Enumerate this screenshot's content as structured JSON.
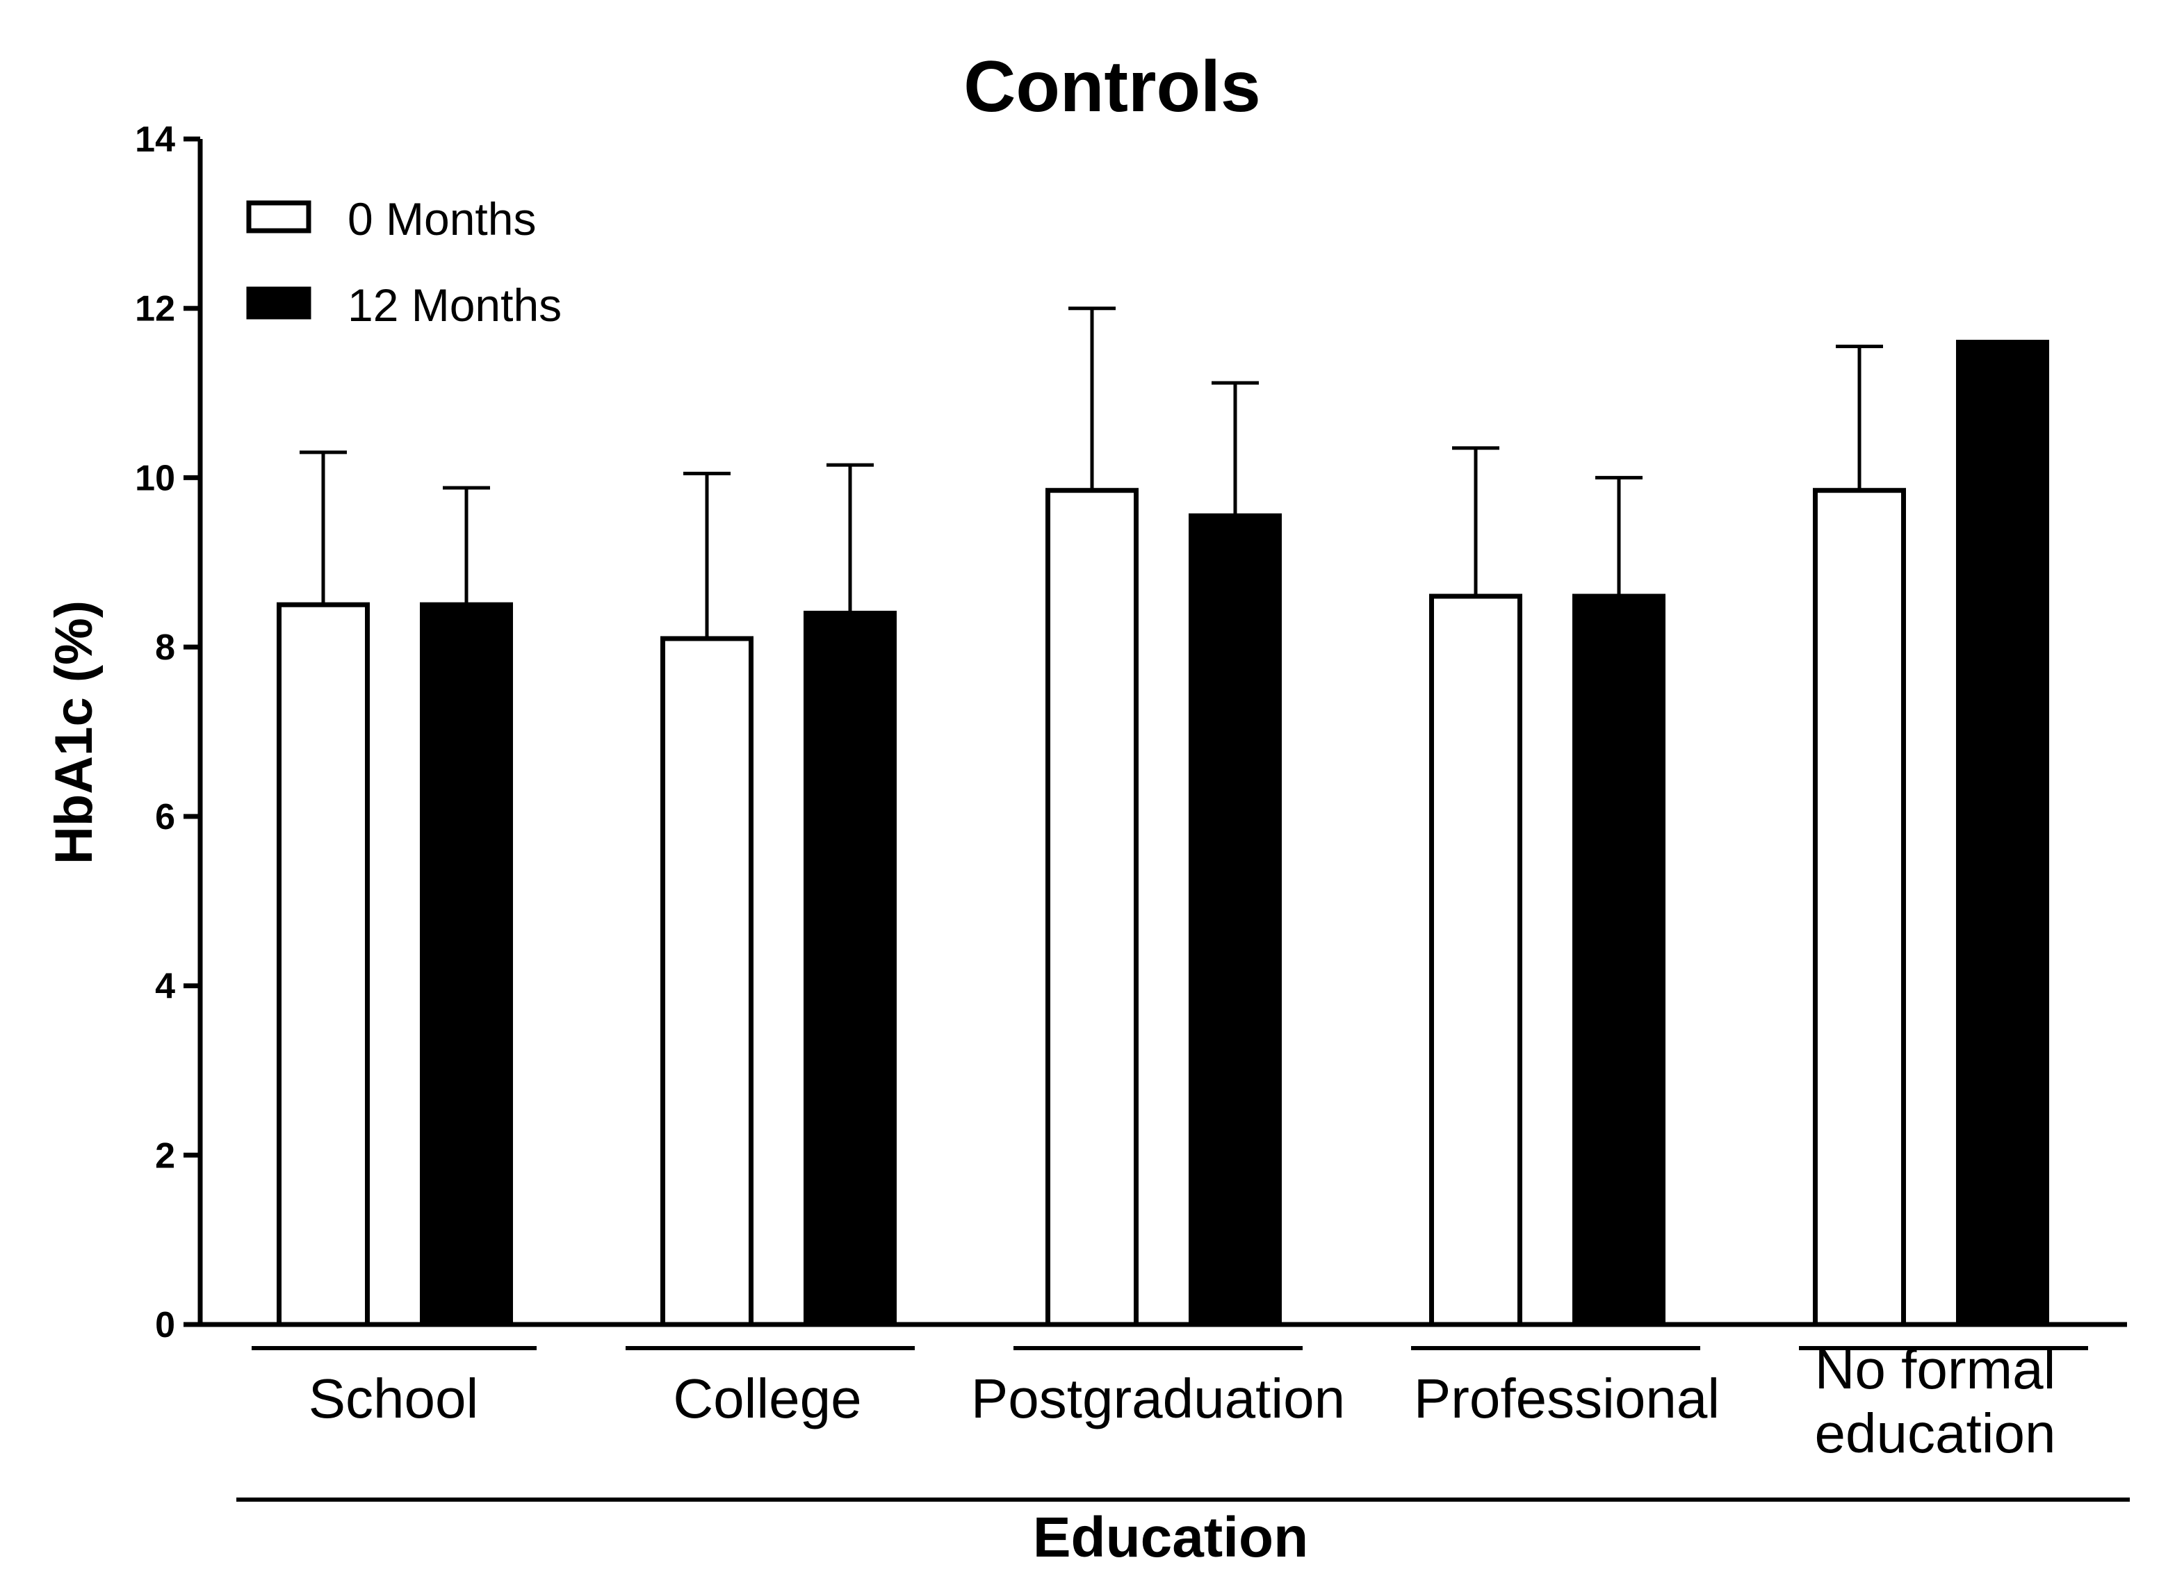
{
  "chart_data": {
    "type": "bar",
    "title": "Controls",
    "xlabel": "Education",
    "ylabel": "HbA1c (%)",
    "ylim": [
      0,
      14
    ],
    "yticks": [
      "0",
      "2",
      "4",
      "6",
      "8",
      "10",
      "12",
      "14"
    ],
    "categories": [
      [
        "School"
      ],
      [
        "College"
      ],
      [
        "Postgraduation"
      ],
      [
        "Professional"
      ],
      [
        "No formal",
        "education"
      ]
    ],
    "series": [
      {
        "name": "0 Months",
        "fill": "#ffffff",
        "stroke": "#000000",
        "values": [
          8.5,
          8.1,
          9.85,
          8.6,
          9.85
        ],
        "error_upper": [
          10.3,
          10.05,
          12.0,
          10.35,
          11.55
        ]
      },
      {
        "name": "12 Months",
        "fill": "#000000",
        "stroke": "#000000",
        "values": [
          8.5,
          8.4,
          9.55,
          8.6,
          11.6
        ],
        "error_upper": [
          9.88,
          10.15,
          11.12,
          10.0,
          null
        ]
      }
    ],
    "legend_position": "top-left",
    "grid": false
  }
}
